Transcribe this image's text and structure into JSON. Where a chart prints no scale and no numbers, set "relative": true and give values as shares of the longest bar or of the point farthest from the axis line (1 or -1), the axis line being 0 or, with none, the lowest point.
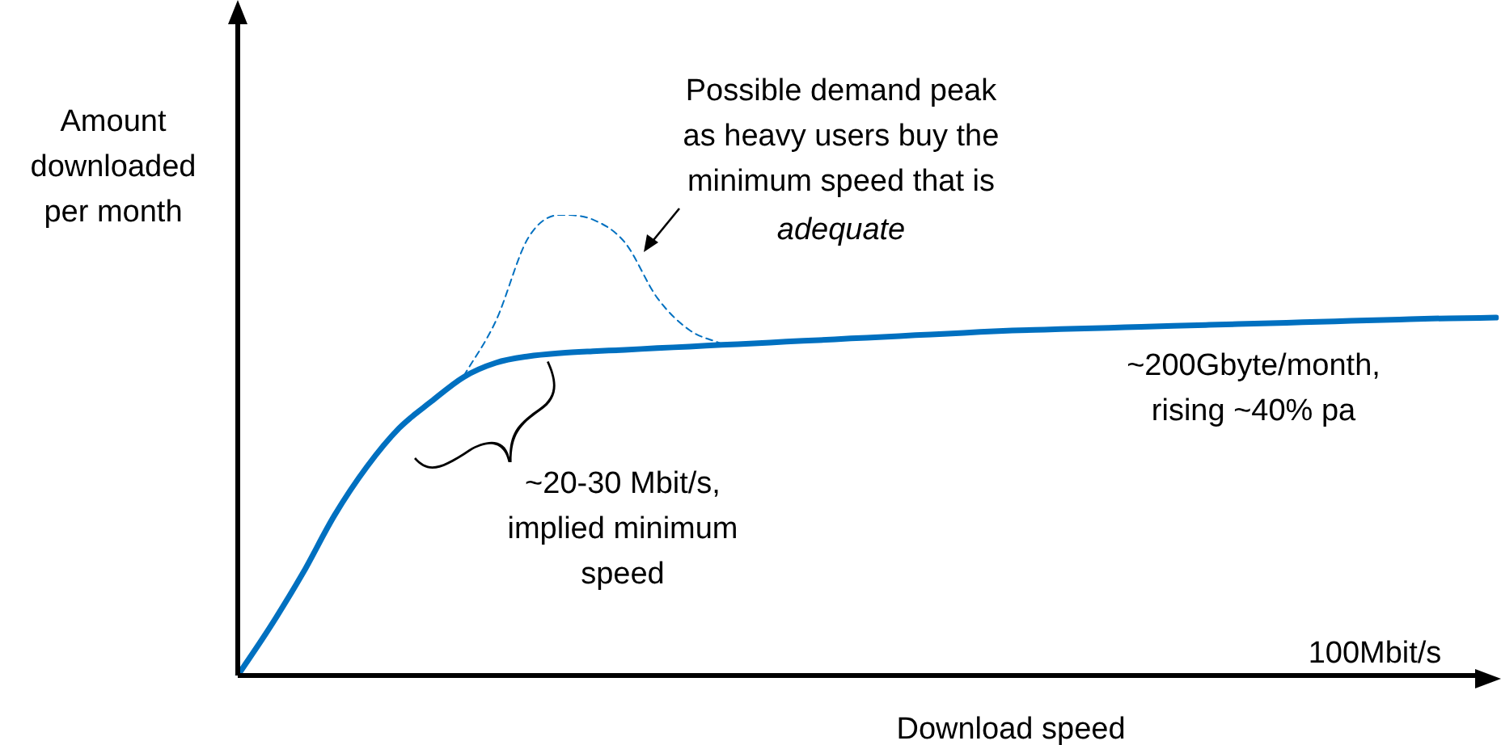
{
  "chart_data": {
    "type": "line",
    "relative": true,
    "xlabel": "Download speed",
    "ylabel": "Amount\ndownloaded\nper month",
    "categories": [
      null,
      null,
      null,
      null,
      null,
      null,
      null,
      null,
      null,
      null,
      null,
      null,
      null,
      null,
      null,
      null,
      null,
      null,
      null,
      null,
      null,
      null,
      null,
      null,
      null,
      null,
      null,
      null,
      null,
      null,
      null,
      null,
      null,
      null,
      null,
      null,
      null,
      null,
      null,
      null
    ],
    "series": [
      {
        "color": "#0070c0",
        "line_style": "solid",
        "values": [
          0,
          0.105,
          0.22,
          0.348,
          0.453,
          0.537,
          0.595,
          0.648,
          0.679,
          0.693,
          0.7,
          0.704,
          0.707,
          0.711,
          0.714,
          0.718,
          0.721,
          0.725,
          0.728,
          0.732,
          0.735,
          0.739,
          0.742,
          0.746,
          0.749,
          0.751,
          0.753,
          0.755,
          0.757,
          0.759,
          0.761,
          0.763,
          0.765,
          0.767,
          0.769,
          0.771,
          0.773,
          0.775,
          0.776,
          0.777
        ]
      },
      {
        "color": "#0070c0",
        "line_style": "dashed",
        "values": [
          null,
          null,
          null,
          null,
          null,
          null,
          null,
          0.65,
          0.77,
          0.95,
          1,
          0.99,
          0.94,
          0.82,
          0.75,
          0.72,
          null,
          null,
          null,
          null,
          null,
          null,
          null,
          null,
          null,
          null,
          null,
          null,
          null,
          null,
          null,
          null,
          null,
          null,
          null,
          null,
          null,
          null,
          null,
          null
        ]
      }
    ],
    "annotations": [
      "100Mbit/s",
      "Possible demand peak\nas heavy users buy the\nminimum speed that is",
      "adequate",
      "~20-30 Mbit/s,\nimplied minimum\nspeed",
      "~200Gbyte/month,\nrising ~40% pa"
    ],
    "legend": false,
    "marker": "none",
    "grid": false
  }
}
